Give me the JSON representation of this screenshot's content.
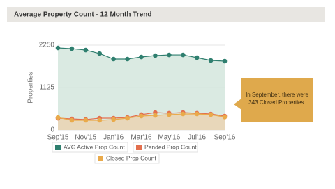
{
  "chart_data": {
    "type": "line",
    "title": "Average Property Count - 12 Month Trend",
    "y_label": "Properties",
    "categories": [
      "Sep'15",
      null,
      "Nov'15",
      null,
      "Jan'16",
      null,
      "Mar'16",
      null,
      "May'16",
      null,
      "Jul'16",
      null,
      "Sep'16"
    ],
    "series": [
      {
        "name": "AVG Active Prop Count",
        "color": "#2f7f6f",
        "area_color": "#d3e6dd",
        "values": [
          2176,
          2157,
          2120,
          2028,
          1881,
          1881,
          1936,
          1973,
          1991,
          1991,
          1918,
          1844,
          1826
        ]
      },
      {
        "name": "Pended Prop Count",
        "color": "#e36f4e",
        "values": [
          313,
          295,
          277,
          313,
          313,
          332,
          406,
          461,
          443,
          461,
          443,
          424,
          369
        ]
      },
      {
        "name": "Closed Prop Count",
        "color": "#e9aa4b",
        "area_color": "#ead3b3",
        "values": [
          332,
          258,
          258,
          258,
          277,
          313,
          369,
          387,
          406,
          424,
          424,
          406,
          343
        ]
      }
    ],
    "ylim": [
      0,
      2250
    ],
    "yticks": [
      0,
      1125,
      2250
    ],
    "grid": true,
    "annotation": [
      "In September, there were",
      "343 Closed Properties."
    ]
  }
}
